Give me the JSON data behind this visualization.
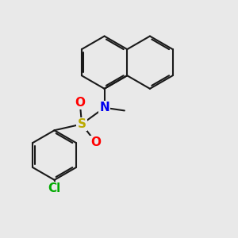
{
  "bg_color": "#e9e9e9",
  "bond_color": "#1a1a1a",
  "bond_width": 1.5,
  "dbo": 0.055,
  "atom_colors": {
    "N": "#0000ee",
    "S": "#bbaa00",
    "O": "#ff0000",
    "Cl": "#00aa00"
  }
}
